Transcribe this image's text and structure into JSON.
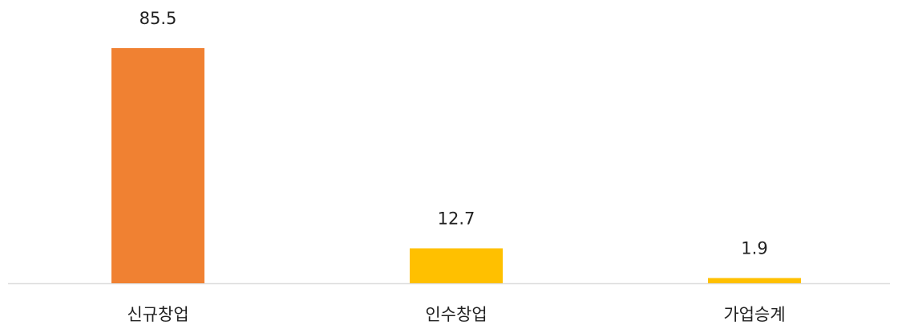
{
  "chart_data": {
    "type": "bar",
    "categories": [
      "신규창업",
      "인수창업",
      "가업승계"
    ],
    "values": [
      85.5,
      12.7,
      1.9
    ],
    "colors": [
      "#f08132",
      "#ffc000",
      "#ffc000"
    ]
  }
}
